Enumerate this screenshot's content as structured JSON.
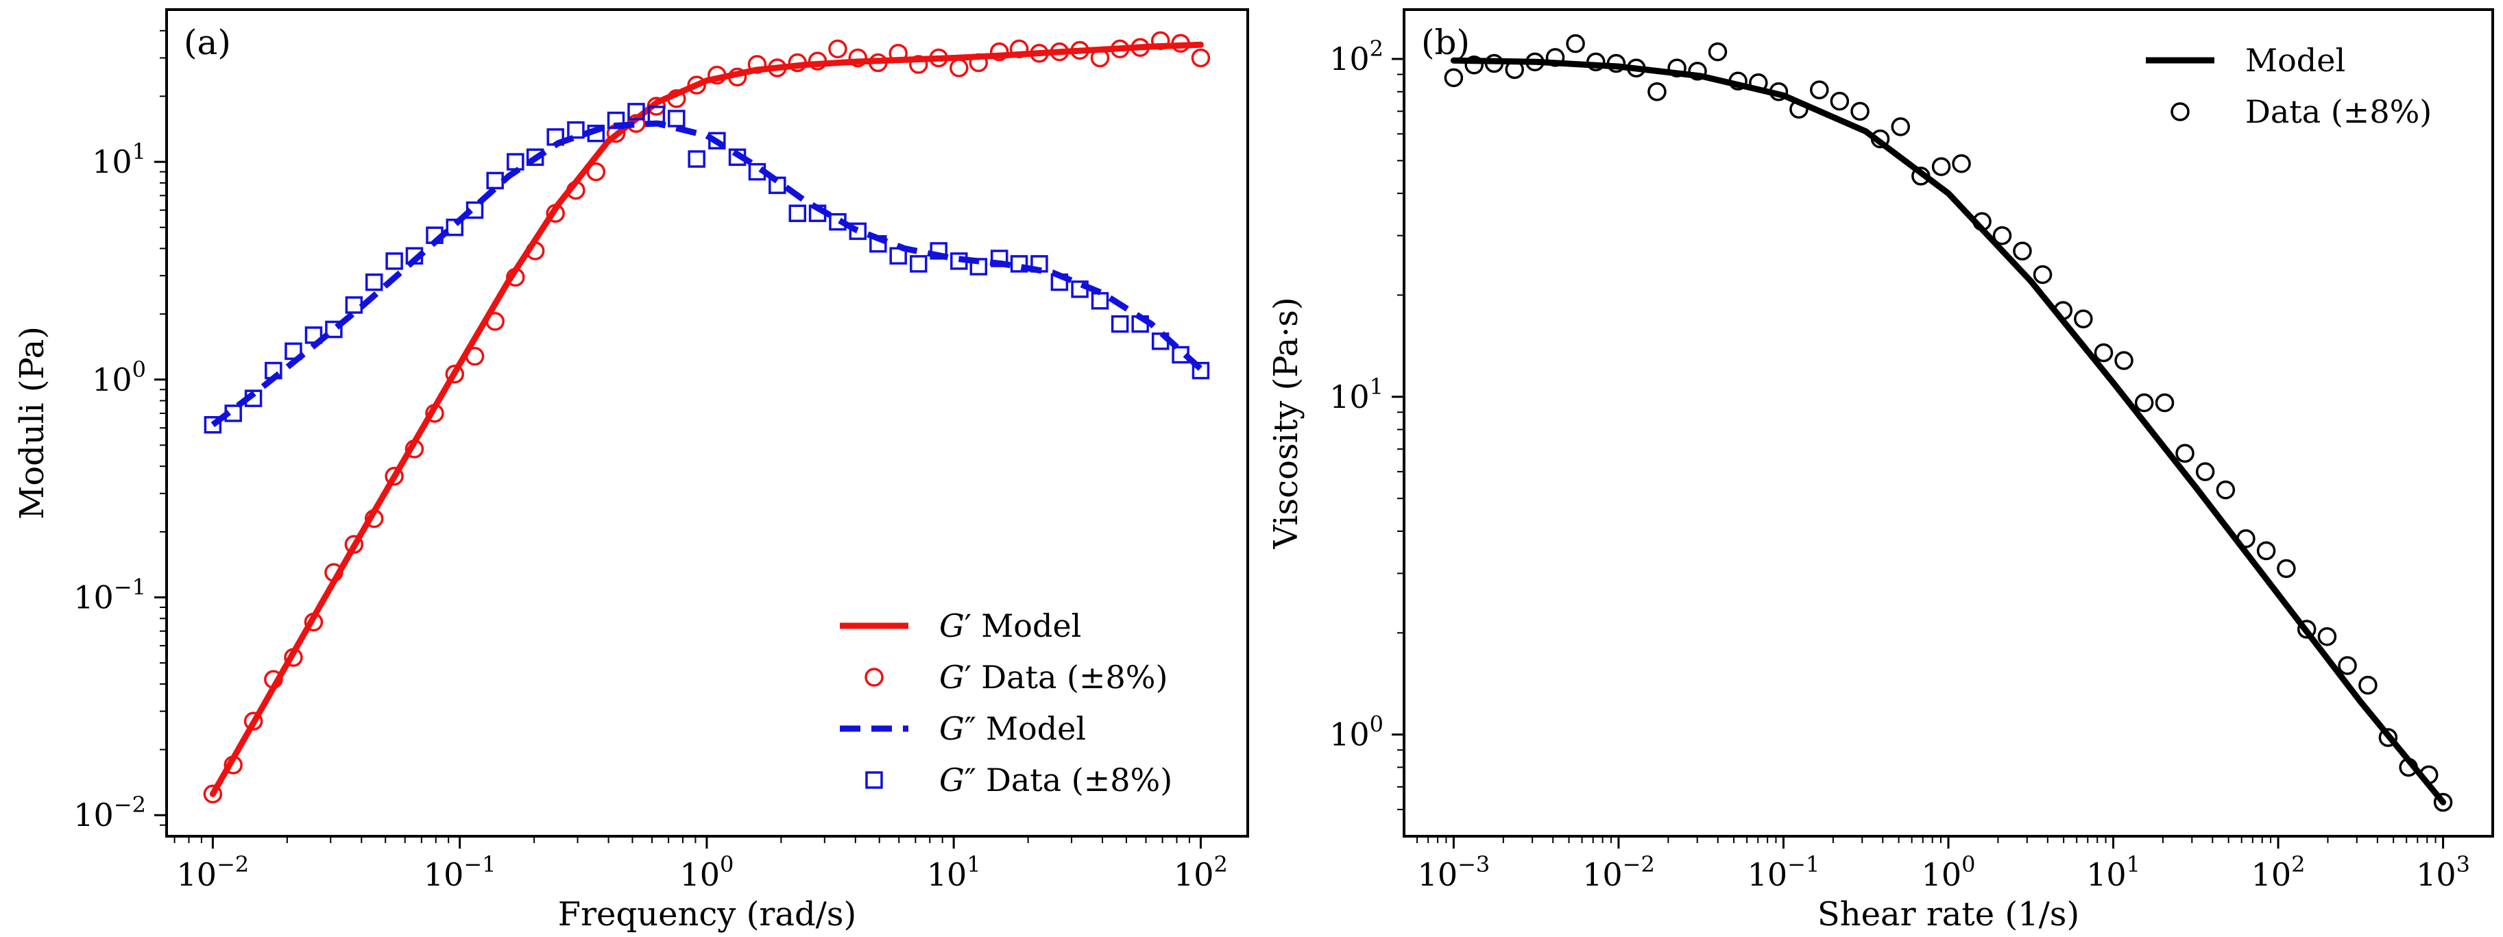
{
  "chart_data": [
    {
      "type": "line",
      "panel_label": "(a)",
      "xlabel": "Frequency (rad/s)",
      "ylabel": "Moduli (Pa)",
      "xscale": "log",
      "yscale": "log",
      "xlim": [
        0.0065,
        155
      ],
      "ylim": [
        0.008,
        50
      ],
      "x_ticks": [
        0.01,
        0.1,
        1,
        10,
        100
      ],
      "y_ticks": [
        0.01,
        0.1,
        1,
        10
      ],
      "legend_position": "bottom-right",
      "grid": false,
      "series": [
        {
          "name": "G′ Model",
          "prime": "′",
          "rest": "Model",
          "kind": "line",
          "style": "solid",
          "color": "#ee1111",
          "x": [
            0.01,
            0.0158,
            0.0251,
            0.0398,
            0.0631,
            0.1,
            0.158,
            0.251,
            0.398,
            0.631,
            1.0,
            1.58,
            2.51,
            3.98,
            6.31,
            10,
            15.8,
            25.1,
            39.8,
            63.1,
            100
          ],
          "y": [
            0.0125,
            0.031,
            0.078,
            0.195,
            0.48,
            1.18,
            2.85,
            6.4,
            12.4,
            18.8,
            23.6,
            26.4,
            27.9,
            28.8,
            29.4,
            30.0,
            30.8,
            31.8,
            32.8,
            33.8,
            34.5
          ]
        },
        {
          "name": "G′ Data (±8%)",
          "prime": "′",
          "rest": "Data (±8%)",
          "kind": "scatter",
          "marker": "circle",
          "color": "#ee1111",
          "x": [
            0.01,
            0.0121,
            0.0146,
            0.0176,
            0.0212,
            0.0256,
            0.0309,
            0.0373,
            0.045,
            0.0543,
            0.0655,
            0.0791,
            0.0954,
            0.115,
            0.139,
            0.168,
            0.202,
            0.244,
            0.295,
            0.356,
            0.429,
            0.518,
            0.625,
            0.754,
            0.91,
            1.1,
            1.33,
            1.6,
            1.93,
            2.33,
            2.81,
            3.39,
            4.09,
            4.94,
            5.96,
            7.2,
            8.69,
            10.5,
            12.6,
            15.3,
            18.4,
            22.2,
            26.8,
            32.4,
            39.1,
            47.1,
            56.9,
            68.7,
            82.9,
            100
          ],
          "y": [
            0.0125,
            0.017,
            0.027,
            0.042,
            0.053,
            0.077,
            0.13,
            0.175,
            0.23,
            0.36,
            0.48,
            0.7,
            1.06,
            1.28,
            1.85,
            2.95,
            3.9,
            5.8,
            7.4,
            9.0,
            13.5,
            15.0,
            18.0,
            19.5,
            22.5,
            25.0,
            24.5,
            28.0,
            27.0,
            28.5,
            29.0,
            33.0,
            30.0,
            28.5,
            31.5,
            28.0,
            30.0,
            27.0,
            28.5,
            32.0,
            33.0,
            31.5,
            32.0,
            32.5,
            30.0,
            33.0,
            33.5,
            36.0,
            35.0,
            30.0
          ]
        },
        {
          "name": "G″ Model",
          "prime": "″",
          "rest": "Model",
          "kind": "line",
          "style": "dashed",
          "color": "#1111dd",
          "x": [
            0.01,
            0.0158,
            0.0251,
            0.0398,
            0.0631,
            0.1,
            0.158,
            0.251,
            0.398,
            0.631,
            1.0,
            1.58,
            2.51,
            3.98,
            6.31,
            10,
            15.8,
            25.1,
            39.8,
            63.1,
            100
          ],
          "y": [
            0.62,
            0.92,
            1.4,
            2.15,
            3.4,
            5.4,
            8.6,
            12.2,
            14.6,
            15.0,
            13.2,
            9.6,
            6.6,
            4.9,
            4.0,
            3.6,
            3.4,
            3.1,
            2.5,
            1.8,
            1.12
          ]
        },
        {
          "name": "G″ Data (±8%)",
          "prime": "″",
          "rest": "Data (±8%)",
          "kind": "scatter",
          "marker": "square",
          "color": "#1111dd",
          "x": [
            0.01,
            0.0121,
            0.0146,
            0.0176,
            0.0212,
            0.0256,
            0.0309,
            0.0373,
            0.045,
            0.0543,
            0.0655,
            0.0791,
            0.0954,
            0.115,
            0.139,
            0.168,
            0.202,
            0.244,
            0.295,
            0.356,
            0.429,
            0.518,
            0.625,
            0.754,
            0.91,
            1.1,
            1.33,
            1.6,
            1.93,
            2.33,
            2.81,
            3.39,
            4.09,
            4.94,
            5.96,
            7.2,
            8.69,
            10.5,
            12.6,
            15.3,
            18.4,
            22.2,
            26.8,
            32.4,
            39.1,
            47.1,
            56.9,
            68.7,
            82.9,
            100
          ],
          "y": [
            0.62,
            0.7,
            0.82,
            1.1,
            1.35,
            1.6,
            1.7,
            2.2,
            2.8,
            3.5,
            3.7,
            4.6,
            5.0,
            6.0,
            8.2,
            10.0,
            10.5,
            13.0,
            14.0,
            13.5,
            15.5,
            17.0,
            16.5,
            15.8,
            10.3,
            12.5,
            10.5,
            9.0,
            7.8,
            5.8,
            5.8,
            5.3,
            4.8,
            4.2,
            3.7,
            3.4,
            3.9,
            3.5,
            3.3,
            3.6,
            3.4,
            3.4,
            2.8,
            2.6,
            2.3,
            1.8,
            1.8,
            1.5,
            1.3,
            1.1
          ]
        }
      ]
    },
    {
      "type": "line",
      "panel_label": "(b)",
      "xlabel": "Shear rate (1/s)",
      "ylabel": "Viscosity (Pa·s)",
      "xscale": "log",
      "yscale": "log",
      "xlim": [
        0.0005,
        2000
      ],
      "ylim": [
        0.5,
        140
      ],
      "x_ticks": [
        0.001,
        0.01,
        0.1,
        1,
        10,
        100,
        1000
      ],
      "y_ticks": [
        1,
        10,
        100
      ],
      "legend_position": "top-right",
      "grid": false,
      "series": [
        {
          "name": "Model",
          "kind": "line",
          "style": "solid",
          "color": "#000000",
          "x": [
            0.001,
            0.00316,
            0.01,
            0.0316,
            0.1,
            0.316,
            1.0,
            3.16,
            10,
            31.6,
            100,
            316,
            1000
          ],
          "y": [
            99.0,
            98.0,
            95.0,
            89.0,
            78.0,
            61.0,
            40.0,
            22.0,
            11.0,
            5.4,
            2.6,
            1.25,
            0.63
          ]
        },
        {
          "name": "Data (±8%)",
          "kind": "scatter",
          "marker": "circle",
          "color": "#000000",
          "x": [
            0.001,
            0.00133,
            0.00176,
            0.00234,
            0.00311,
            0.00413,
            0.00548,
            0.00728,
            0.00967,
            0.0128,
            0.0171,
            0.0226,
            0.0301,
            0.0399,
            0.053,
            0.0704,
            0.0935,
            0.124,
            0.165,
            0.219,
            0.291,
            0.386,
            0.513,
            0.681,
            0.905,
            1.2,
            1.6,
            2.12,
            2.81,
            3.73,
            4.96,
            6.58,
            8.74,
            11.6,
            15.4,
            20.5,
            27.2,
            36.1,
            48.0,
            63.7,
            84.6,
            112,
            149,
            198,
            263,
            350,
            464,
            617,
            819,
            1000
          ],
          "y": [
            88,
            96,
            97,
            93,
            98,
            101,
            111,
            98,
            97,
            94,
            80,
            94,
            92,
            105,
            86,
            85,
            80,
            71,
            81,
            75,
            70,
            58,
            63,
            45,
            48,
            49,
            33,
            30,
            27,
            23,
            18,
            17,
            13.5,
            12.8,
            9.6,
            9.6,
            6.8,
            6.0,
            5.3,
            3.8,
            3.5,
            3.1,
            2.05,
            1.95,
            1.6,
            1.4,
            0.98,
            0.8,
            0.76,
            0.63
          ]
        }
      ]
    }
  ]
}
